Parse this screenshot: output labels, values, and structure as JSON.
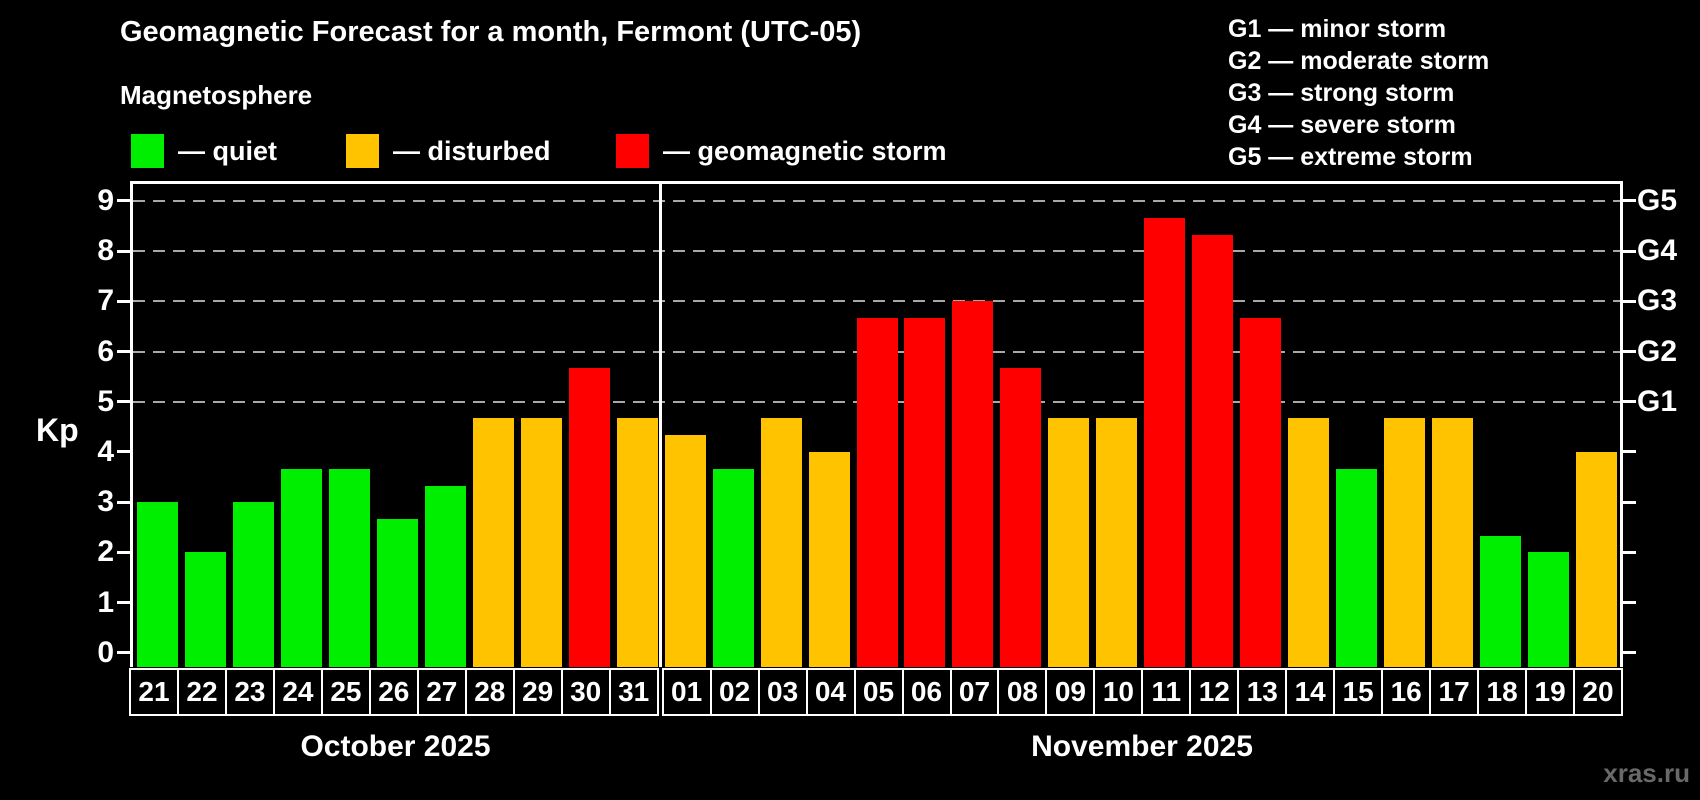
{
  "title": "Geomagnetic Forecast for a month, Fermont (UTC-05)",
  "subtitle": "Magnetosphere",
  "legend": {
    "items": [
      {
        "label": "— quiet",
        "status": "quiet",
        "color": "#00ee00"
      },
      {
        "label": "— disturbed",
        "status": "disturbed",
        "color": "#ffc300"
      },
      {
        "label": "— geomagnetic storm",
        "status": "storm",
        "color": "#ff0000"
      }
    ]
  },
  "storm_scale": {
    "lines": [
      "G1 — minor storm",
      "G2 — moderate storm",
      "G3 — strong storm",
      "G4 — severe storm",
      "G5 — extreme storm"
    ]
  },
  "watermark": "xras.ru",
  "chart_data": {
    "type": "bar",
    "title": "Geomagnetic Forecast for a month, Fermont (UTC-05)",
    "ylabel": "Kp",
    "ylim": [
      0,
      9
    ],
    "yticks": [
      0,
      1,
      2,
      3,
      4,
      5,
      6,
      7,
      8,
      9
    ],
    "gridlines_at": [
      5,
      6,
      7,
      8,
      9
    ],
    "grid": "dashed horizontal at G-storm levels only",
    "legend_position": "top",
    "right_axis": [
      {
        "label": "G1",
        "kp": 5
      },
      {
        "label": "G2",
        "kp": 6
      },
      {
        "label": "G3",
        "kp": 7
      },
      {
        "label": "G4",
        "kp": 8
      },
      {
        "label": "G5",
        "kp": 9
      }
    ],
    "status_colors": {
      "quiet": "#00ee00",
      "disturbed": "#ffc300",
      "storm": "#ff0000"
    },
    "months": [
      {
        "label": "October 2025",
        "days": [
          {
            "date": "21",
            "kp": 3.0,
            "status": "quiet"
          },
          {
            "date": "22",
            "kp": 2.0,
            "status": "quiet"
          },
          {
            "date": "23",
            "kp": 3.0,
            "status": "quiet"
          },
          {
            "date": "24",
            "kp": 3.67,
            "status": "quiet"
          },
          {
            "date": "25",
            "kp": 3.67,
            "status": "quiet"
          },
          {
            "date": "26",
            "kp": 2.67,
            "status": "quiet"
          },
          {
            "date": "27",
            "kp": 3.33,
            "status": "quiet"
          },
          {
            "date": "28",
            "kp": 4.67,
            "status": "disturbed"
          },
          {
            "date": "29",
            "kp": 4.67,
            "status": "disturbed"
          },
          {
            "date": "30",
            "kp": 5.67,
            "status": "storm"
          },
          {
            "date": "31",
            "kp": 4.67,
            "status": "disturbed"
          }
        ]
      },
      {
        "label": "November 2025",
        "days": [
          {
            "date": "01",
            "kp": 4.33,
            "status": "disturbed"
          },
          {
            "date": "02",
            "kp": 3.67,
            "status": "quiet"
          },
          {
            "date": "03",
            "kp": 4.67,
            "status": "disturbed"
          },
          {
            "date": "04",
            "kp": 4.0,
            "status": "disturbed"
          },
          {
            "date": "05",
            "kp": 6.67,
            "status": "storm"
          },
          {
            "date": "06",
            "kp": 6.67,
            "status": "storm"
          },
          {
            "date": "07",
            "kp": 7.0,
            "status": "storm"
          },
          {
            "date": "08",
            "kp": 5.67,
            "status": "storm"
          },
          {
            "date": "09",
            "kp": 4.67,
            "status": "disturbed"
          },
          {
            "date": "10",
            "kp": 4.67,
            "status": "disturbed"
          },
          {
            "date": "11",
            "kp": 8.67,
            "status": "storm"
          },
          {
            "date": "12",
            "kp": 8.33,
            "status": "storm"
          },
          {
            "date": "13",
            "kp": 6.67,
            "status": "storm"
          },
          {
            "date": "14",
            "kp": 4.67,
            "status": "disturbed"
          },
          {
            "date": "15",
            "kp": 3.67,
            "status": "quiet"
          },
          {
            "date": "16",
            "kp": 4.67,
            "status": "disturbed"
          },
          {
            "date": "17",
            "kp": 4.67,
            "status": "disturbed"
          },
          {
            "date": "18",
            "kp": 2.33,
            "status": "quiet"
          },
          {
            "date": "19",
            "kp": 2.0,
            "status": "quiet"
          },
          {
            "date": "20",
            "kp": 4.0,
            "status": "disturbed"
          }
        ]
      }
    ]
  }
}
